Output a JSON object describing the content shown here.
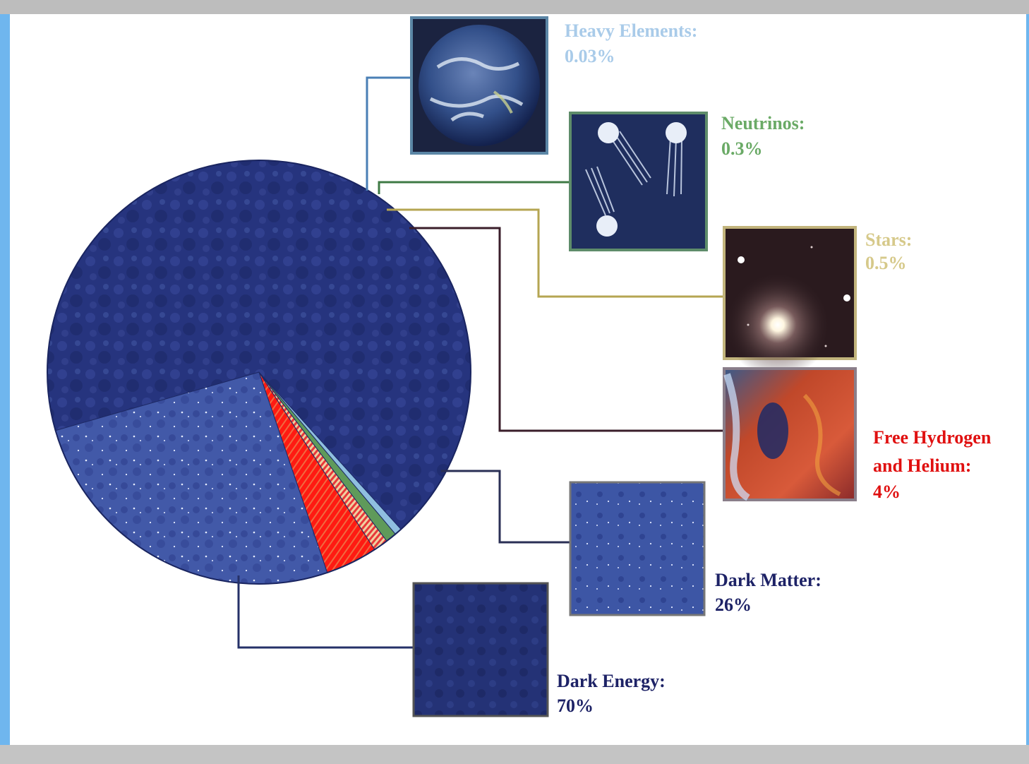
{
  "chart_data": {
    "type": "pie",
    "title": "",
    "slices": [
      {
        "label": "Dark Energy:",
        "value_text": "70%",
        "value": 70,
        "color": "#2a3a86"
      },
      {
        "label": "Dark Matter:",
        "value_text": "26%",
        "value": 26,
        "color": "#3e55a6"
      },
      {
        "label": "Free Hydrogen and Helium:",
        "label_lines": [
          "Free Hydrogen",
          "and Helium:"
        ],
        "value_text": "4%",
        "value": 4,
        "color": "#ff1a12"
      },
      {
        "label": "Stars:",
        "value_text": "0.5%",
        "value": 0.5,
        "color": "#d8c07a"
      },
      {
        "label": "Neutrinos:",
        "value_text": "0.3%",
        "value": 0.3,
        "color": "#5f9a5a"
      },
      {
        "label": "Heavy Elements:",
        "value_text": "0.03%",
        "value": 0.03,
        "color": "#8fbfe0"
      }
    ],
    "label_colors": {
      "Dark Energy:": "#1d2266",
      "Dark Matter:": "#1d2266",
      "Free Hydrogen and Helium:": "#e01010",
      "Stars:": "#d6c98a",
      "Neutrinos:": "#6aaa66",
      "Heavy Elements:": "#a9cbe9"
    }
  }
}
